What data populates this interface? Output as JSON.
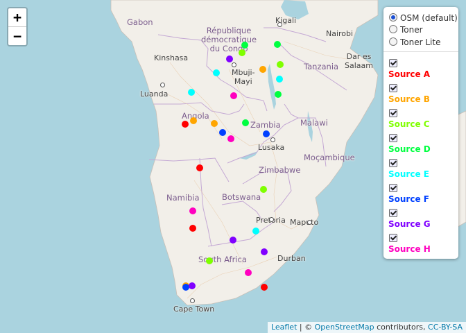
{
  "zoom": {
    "in_label": "+",
    "out_label": "−"
  },
  "layers": {
    "base": [
      {
        "label": "OSM (default)",
        "selected": true
      },
      {
        "label": "Toner",
        "selected": false
      },
      {
        "label": "Toner Lite",
        "selected": false
      }
    ],
    "overlays": [
      {
        "label": "Source A",
        "color": "#ff0000",
        "checked": true
      },
      {
        "label": "Source B",
        "color": "#ffa500",
        "checked": true
      },
      {
        "label": "Source C",
        "color": "#7fff00",
        "checked": true
      },
      {
        "label": "Source D",
        "color": "#00ff40",
        "checked": true
      },
      {
        "label": "Source E",
        "color": "#00ffff",
        "checked": true
      },
      {
        "label": "Source F",
        "color": "#0040ff",
        "checked": true
      },
      {
        "label": "Source G",
        "color": "#8000ff",
        "checked": true
      },
      {
        "label": "Source H",
        "color": "#ff00bf",
        "checked": true
      }
    ]
  },
  "labels": {
    "gabon": "Gabon",
    "drc_1": "République",
    "drc_2": "démocratique",
    "drc_3": "du Congo",
    "kigali": "Kigali",
    "nairobi": "Nairobi",
    "kinshasa": "Kinshasa",
    "mbuji_1": "Mbuji-",
    "mbuji_2": "Mayi",
    "dar_1": "Dar es",
    "dar_2": "Salaam",
    "tanzania": "Tanzania",
    "luanda": "Luanda",
    "angola": "Angola",
    "zambia": "Zambia",
    "malawi": "Malawi",
    "lusaka": "Lusaka",
    "mocambique": "Moçambique",
    "zimbabwe": "Zimbabwe",
    "namibia": "Namibia",
    "botswana": "Botswana",
    "pretoria": "Pretoria",
    "maputo": "Maputo",
    "south_africa": "South Africa",
    "durban": "Durban",
    "cape_town": "Cape Town"
  },
  "attribution": {
    "leaflet": "Leaflet",
    "sep": " | © ",
    "osm": "OpenStreetMap",
    "contrib": " contributors, ",
    "license": "CC-BY-SA"
  },
  "markers": [
    {
      "source": "Source A",
      "color": "#ff0000"
    },
    {
      "source": "Source A",
      "color": "#ff0000"
    },
    {
      "source": "Source A",
      "color": "#ff0000"
    },
    {
      "source": "Source A",
      "color": "#ff0000"
    },
    {
      "source": "Source B",
      "color": "#ffa500"
    },
    {
      "source": "Source B",
      "color": "#ffa500"
    },
    {
      "source": "Source B",
      "color": "#ffa500"
    },
    {
      "source": "Source B",
      "color": "#ffa500"
    },
    {
      "source": "Source C",
      "color": "#7fff00"
    },
    {
      "source": "Source C",
      "color": "#7fff00"
    },
    {
      "source": "Source C",
      "color": "#7fff00"
    },
    {
      "source": "Source C",
      "color": "#7fff00"
    },
    {
      "source": "Source D",
      "color": "#00ff40"
    },
    {
      "source": "Source D",
      "color": "#00ff40"
    },
    {
      "source": "Source D",
      "color": "#00ff40"
    },
    {
      "source": "Source D",
      "color": "#00ff40"
    },
    {
      "source": "Source E",
      "color": "#00ffff"
    },
    {
      "source": "Source E",
      "color": "#00ffff"
    },
    {
      "source": "Source E",
      "color": "#00ffff"
    },
    {
      "source": "Source E",
      "color": "#00ffff"
    },
    {
      "source": "Source F",
      "color": "#0040ff"
    },
    {
      "source": "Source F",
      "color": "#0040ff"
    },
    {
      "source": "Source F",
      "color": "#0040ff"
    },
    {
      "source": "Source G",
      "color": "#8000ff"
    },
    {
      "source": "Source G",
      "color": "#8000ff"
    },
    {
      "source": "Source G",
      "color": "#8000ff"
    },
    {
      "source": "Source G",
      "color": "#8000ff"
    },
    {
      "source": "Source H",
      "color": "#ff00bf"
    },
    {
      "source": "Source H",
      "color": "#ff00bf"
    },
    {
      "source": "Source H",
      "color": "#ff00bf"
    },
    {
      "source": "Source H",
      "color": "#ff00bf"
    }
  ]
}
